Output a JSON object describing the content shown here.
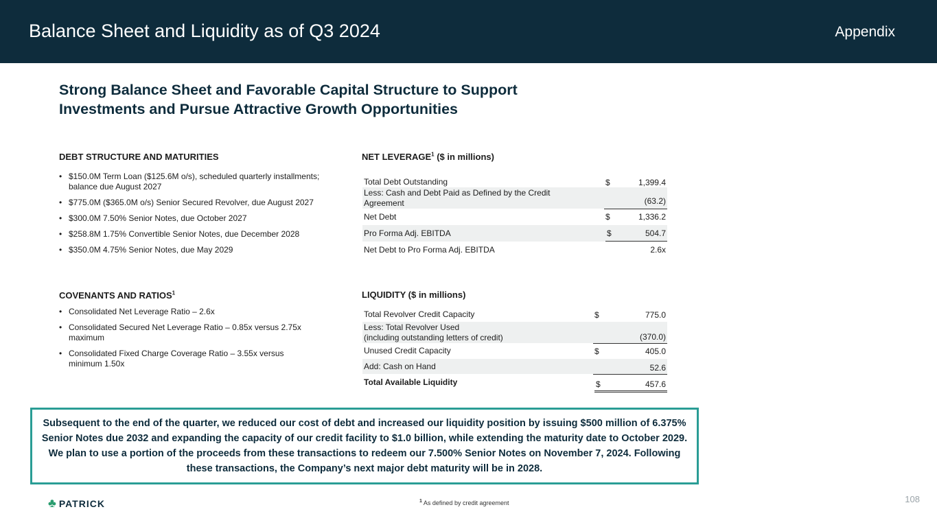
{
  "header": {
    "title": "Balance Sheet and Liquidity as of Q3 2024",
    "section": "Appendix"
  },
  "headline": {
    "line1": "Strong Balance Sheet and Favorable Capital Structure to Support",
    "line2": "Investments and Pursue Attractive Growth Opportunities"
  },
  "debt": {
    "title": "DEBT STRUCTURE AND MATURITIES",
    "items": [
      "$150.0M Term Loan ($125.6M o/s), scheduled quarterly installments; balance due August 2027",
      "$775.0M ($365.0M o/s) Senior Secured Revolver, due August 2027",
      "$300.0M 7.50% Senior Notes, due October 2027",
      "$258.8M 1.75% Convertible Senior Notes, due December 2028",
      "$350.0M 4.75% Senior Notes, due May 2029"
    ]
  },
  "covenants": {
    "title": "COVENANTS AND RATIOS",
    "sup": "1",
    "items": [
      "Consolidated Net Leverage Ratio – 2.6x",
      "Consolidated Secured Net Leverage Ratio – 0.85x versus 2.75x maximum",
      "Consolidated Fixed Charge Coverage Ratio – 3.55x versus minimum 1.50x"
    ]
  },
  "leverage": {
    "title_main": "NET LEVERAGE",
    "sup": "1",
    "title_rest": " ($ in millions)",
    "rows": [
      {
        "label": "Total Debt Outstanding",
        "dollar": "$",
        "value": "1,399.4"
      },
      {
        "label": "Less: Cash and Debt Paid as Defined by the Credit Agreement",
        "dollar": "",
        "value": "(63.2)"
      },
      {
        "label": "Net Debt",
        "dollar": "$",
        "value": "1,336.2"
      },
      {
        "label": "Pro Forma Adj. EBITDA",
        "dollar": "$",
        "value": "504.7"
      },
      {
        "label": "Net Debt to Pro Forma Adj. EBITDA",
        "dollar": "",
        "value": "2.6x"
      }
    ]
  },
  "liquidity": {
    "title": "LIQUIDITY ($ in millions)",
    "rows": [
      {
        "label": "Total Revolver Credit Capacity",
        "dollar": "$",
        "value": "775.0"
      },
      {
        "label": "Less: Total Revolver Used",
        "label2": "(including outstanding letters of credit)",
        "dollar": "",
        "value": "(370.0)"
      },
      {
        "label": "Unused Credit Capacity",
        "dollar": "$",
        "value": "405.0"
      },
      {
        "label": "Add: Cash on Hand",
        "dollar": "",
        "value": "52.6"
      },
      {
        "label": "Total Available Liquidity",
        "dollar": "$",
        "value": "457.6"
      }
    ]
  },
  "callout": {
    "text": "Subsequent to the end of the quarter, we reduced our cost of debt and increased our liquidity position by issuing $500 million of 6.375% Senior Notes due 2032 and expanding the capacity of our credit facility to $1.0 billion, while extending the maturity date to October 2029. We plan to use a portion of the proceeds from these transactions to redeem our 7.500% Senior Notes on November 7, 2024. Following these transactions, the Company’s next major debt maturity will be in 2028."
  },
  "footer": {
    "logo_text": "PATRICK",
    "footnote_sup": "1",
    "footnote": " As defined by credit agreement",
    "page": "108"
  },
  "colors": {
    "header_bg": "#0e2c3c",
    "accent": "#2a9d95",
    "row_shade": "#eef0f0"
  }
}
